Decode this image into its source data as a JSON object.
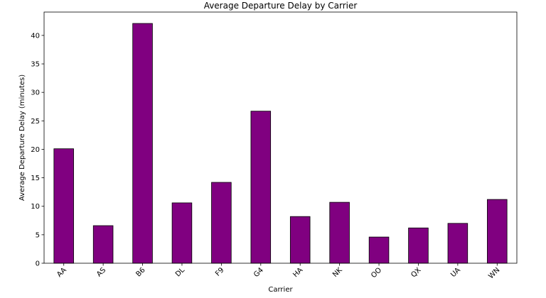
{
  "chart_data": {
    "type": "bar",
    "title": "Average Departure Delay by Carrier",
    "xlabel": "Carrier",
    "ylabel": "Average Departure Delay (minutes)",
    "categories": [
      "AA",
      "AS",
      "B6",
      "DL",
      "F9",
      "G4",
      "HA",
      "NK",
      "OO",
      "QX",
      "UA",
      "WN"
    ],
    "values": [
      20.1,
      6.6,
      42.1,
      10.6,
      14.2,
      26.7,
      8.2,
      10.7,
      4.6,
      6.2,
      7.0,
      11.2
    ],
    "ylim": [
      0,
      44.1
    ],
    "yticks": [
      0,
      5,
      10,
      15,
      20,
      25,
      30,
      35,
      40
    ],
    "grid": false,
    "legend": "none",
    "bar_color": "#800080",
    "edge_color": "#000000"
  }
}
